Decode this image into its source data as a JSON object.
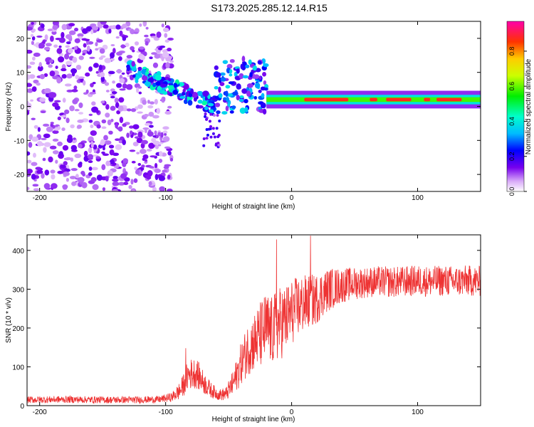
{
  "figure_title": "S173.2025.285.12.14.R15",
  "chart_data": [
    {
      "type": "heatmap",
      "title": "S173.2025.285.12.14.R15",
      "xlabel": "Height of straight line (km)",
      "ylabel": "Frequency (Hz)",
      "xlim": [
        -210,
        150
      ],
      "ylim": [
        -25,
        25
      ],
      "x_ticks": [
        -200,
        -100,
        0,
        100
      ],
      "x_tick_labels": [
        "-200",
        "-100",
        "0",
        "100"
      ],
      "y_ticks": [
        -20,
        -10,
        0,
        10,
        20
      ],
      "y_tick_labels": [
        "-20",
        "-10",
        "0",
        "10",
        "20"
      ],
      "colorbar": {
        "label": "Normalized spectral amplitude",
        "range": [
          0,
          0.97
        ],
        "ticks": [
          0,
          0.2,
          0.4,
          0.6,
          0.8
        ],
        "tick_labels": [
          "0.0",
          "0.2",
          "0.4",
          "0.6",
          "0.8"
        ],
        "colormap": "rainbow-violet-to-magenta"
      },
      "features": [
        {
          "name": "diffuse noise",
          "x_range": [
            -210,
            -95
          ],
          "freq_range": [
            -25,
            25
          ],
          "amplitude": 0.1
        },
        {
          "name": "descending tone",
          "x_range": [
            -130,
            -60
          ],
          "freq_start": 11,
          "freq_end": 0,
          "amplitude": 0.35
        },
        {
          "name": "scattered blobs",
          "x_range": [
            -60,
            -20
          ],
          "freq_range": [
            -2,
            14
          ],
          "amplitude": 0.3
        },
        {
          "name": "carrier line",
          "x_range": [
            -20,
            150
          ],
          "freq": 2,
          "amplitude": 0.9
        }
      ]
    },
    {
      "type": "line",
      "xlabel": "Height of straight line (km)",
      "ylabel": "SNR (10 * v/v)",
      "xlim": [
        -210,
        150
      ],
      "ylim": [
        0,
        440
      ],
      "x_ticks": [
        -200,
        -100,
        0,
        100
      ],
      "x_tick_labels": [
        "-200",
        "-100",
        "0",
        "100"
      ],
      "y_ticks": [
        0,
        100,
        200,
        300,
        400
      ],
      "y_tick_labels": [
        "0",
        "100",
        "200",
        "300",
        "400"
      ],
      "color": "#ee3333",
      "series": [
        {
          "name": "SNR",
          "x": [
            -210,
            -180,
            -150,
            -120,
            -105,
            -95,
            -88,
            -82,
            -76,
            -70,
            -64,
            -58,
            -52,
            -46,
            -40,
            -34,
            -28,
            -24,
            -20,
            -16,
            -12,
            -8,
            -4,
            0,
            5,
            10,
            15,
            20,
            25,
            30,
            40,
            50,
            60,
            70,
            80,
            90,
            100,
            110,
            120,
            130,
            140,
            150
          ],
          "y": [
            15,
            16,
            15,
            15,
            16,
            22,
            40,
            80,
            85,
            60,
            40,
            28,
            30,
            60,
            110,
            150,
            170,
            185,
            200,
            190,
            205,
            215,
            225,
            240,
            255,
            262,
            268,
            275,
            290,
            300,
            310,
            315,
            318,
            320,
            318,
            320,
            322,
            320,
            322,
            320,
            322,
            320
          ],
          "noise": [
            9,
            9,
            9,
            9,
            9,
            12,
            25,
            40,
            40,
            30,
            20,
            14,
            18,
            35,
            55,
            70,
            80,
            90,
            95,
            90,
            95,
            95,
            90,
            85,
            80,
            75,
            70,
            65,
            60,
            55,
            45,
            42,
            40,
            40,
            40,
            40,
            40,
            40,
            40,
            40,
            40,
            40
          ]
        }
      ],
      "spikes": [
        {
          "x": -12,
          "y": 428
        },
        {
          "x": 15,
          "y": 438
        },
        {
          "x": -84,
          "y": 148
        }
      ]
    }
  ]
}
